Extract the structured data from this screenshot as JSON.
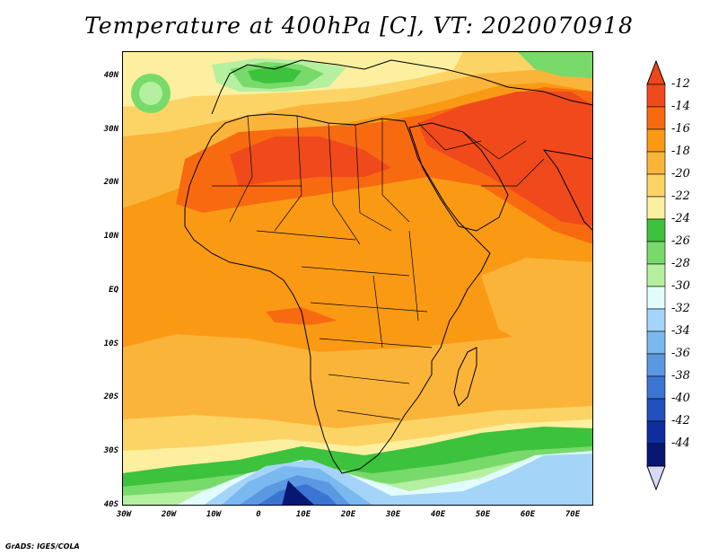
{
  "title": "Temperature at 400hPa [C], VT: 2020070918",
  "credit": "GrADS: IGES/COLA",
  "map": {
    "variable": "Temperature",
    "level": "400hPa",
    "units": "C",
    "valid_time": "2020070918",
    "lat_labels": [
      "40N",
      "30N",
      "20N",
      "10N",
      "EQ",
      "10S",
      "20S",
      "30S",
      "40S"
    ],
    "lon_labels": [
      "30W",
      "20W",
      "10W",
      "0",
      "10E",
      "20E",
      "30E",
      "40E",
      "50E",
      "60E",
      "70E"
    ]
  },
  "colorbar": {
    "labels": [
      "-12",
      "-14",
      "-16",
      "-18",
      "-20",
      "-22",
      "-24",
      "-26",
      "-28",
      "-30",
      "-32",
      "-34",
      "-36",
      "-38",
      "-40",
      "-42",
      "-44"
    ],
    "colors": [
      "#f04a1c",
      "#f86a10",
      "#fa9a14",
      "#fbb43a",
      "#fcd466",
      "#fcefa0",
      "#3cc23c",
      "#78da6a",
      "#b4f0a0",
      "#e2fcfe",
      "#a4d4f8",
      "#7ab8f0",
      "#5a98e2",
      "#3c74d2",
      "#2250bc",
      "#0e2ea0",
      "#081872"
    ],
    "top_arrow_color": "#f0461c",
    "bottom_arrow_color": "#d8d8f8"
  },
  "field_colors": {
    "base": "#fa9a14",
    "warm": "#f86a10",
    "warmest": "#f04a1c",
    "cool": "#fbb43a",
    "cooler": "#fcd466",
    "coolest": "#fcefa0",
    "green_dark": "#3cc23c",
    "green": "#78da6a",
    "green_light": "#b4f0a0",
    "cyan_light": "#e2fcfe",
    "blue_light": "#a4d4f8",
    "blue": "#7ab8f0",
    "blue_mid": "#5a98e2",
    "blue_dark": "#3c74d2",
    "blue_darker": "#2250bc",
    "navy": "#081872"
  }
}
